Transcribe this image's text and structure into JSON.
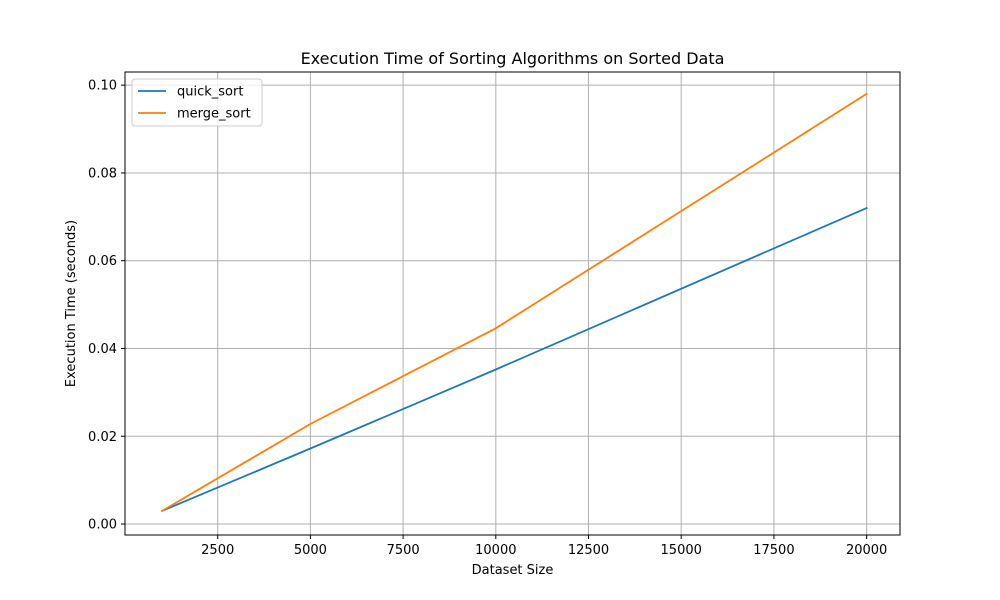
{
  "chart_data": {
    "type": "line",
    "title": "Execution Time of Sorting Algorithms on Sorted Data",
    "xlabel": "Dataset Size",
    "ylabel": "Execution Time (seconds)",
    "x": [
      1000,
      5000,
      10000,
      20000
    ],
    "xlim": [
      0,
      20900
    ],
    "ylim": [
      -0.0025,
      0.103
    ],
    "xticks": [
      2500,
      5000,
      7500,
      10000,
      12500,
      15000,
      17500,
      20000
    ],
    "xtick_labels": [
      "2500",
      "5000",
      "7500",
      "10000",
      "12500",
      "15000",
      "17500",
      "20000"
    ],
    "yticks": [
      0.0,
      0.02,
      0.04,
      0.06,
      0.08,
      0.1
    ],
    "ytick_labels": [
      "0.00",
      "0.02",
      "0.04",
      "0.06",
      "0.08",
      "0.10"
    ],
    "grid": true,
    "legend_position": "top-left",
    "series": [
      {
        "name": "quick_sort",
        "color": "#1f77b4",
        "values": [
          0.003,
          0.0172,
          0.0352,
          0.072
        ]
      },
      {
        "name": "merge_sort",
        "color": "#ff7f0e",
        "values": [
          0.003,
          0.0228,
          0.0446,
          0.098
        ]
      }
    ]
  }
}
